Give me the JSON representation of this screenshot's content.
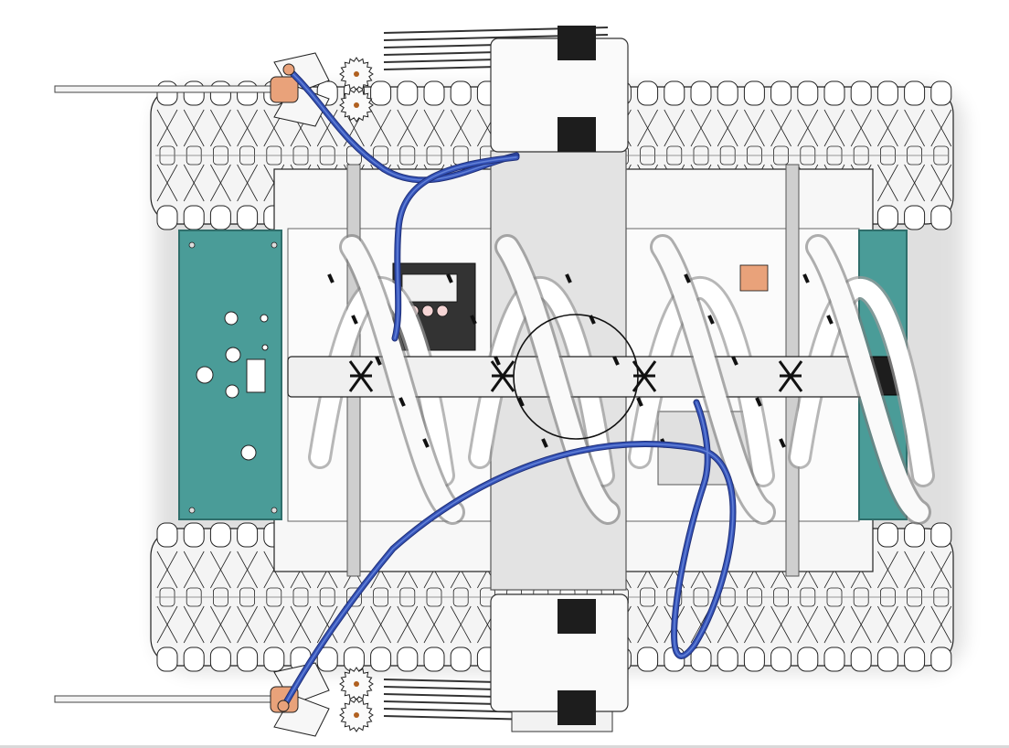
{
  "colors": {
    "background": "#ffffff",
    "outline": "#222222",
    "track_fill": "#f4f4f4",
    "panel_teal": "#4a9c98",
    "panel_teal_dark": "#2f6e6b",
    "chassis_plate": "#e3e3e3",
    "frame_gray": "#cfcfcf",
    "cable_blue": "#3553b8",
    "cable_blue_light": "#6f8fe0",
    "claw_copper": "#e9a27a",
    "gear_white": "#fafafa",
    "sensor_black": "#1d1d1d",
    "pcb_dark": "#333333"
  }
}
